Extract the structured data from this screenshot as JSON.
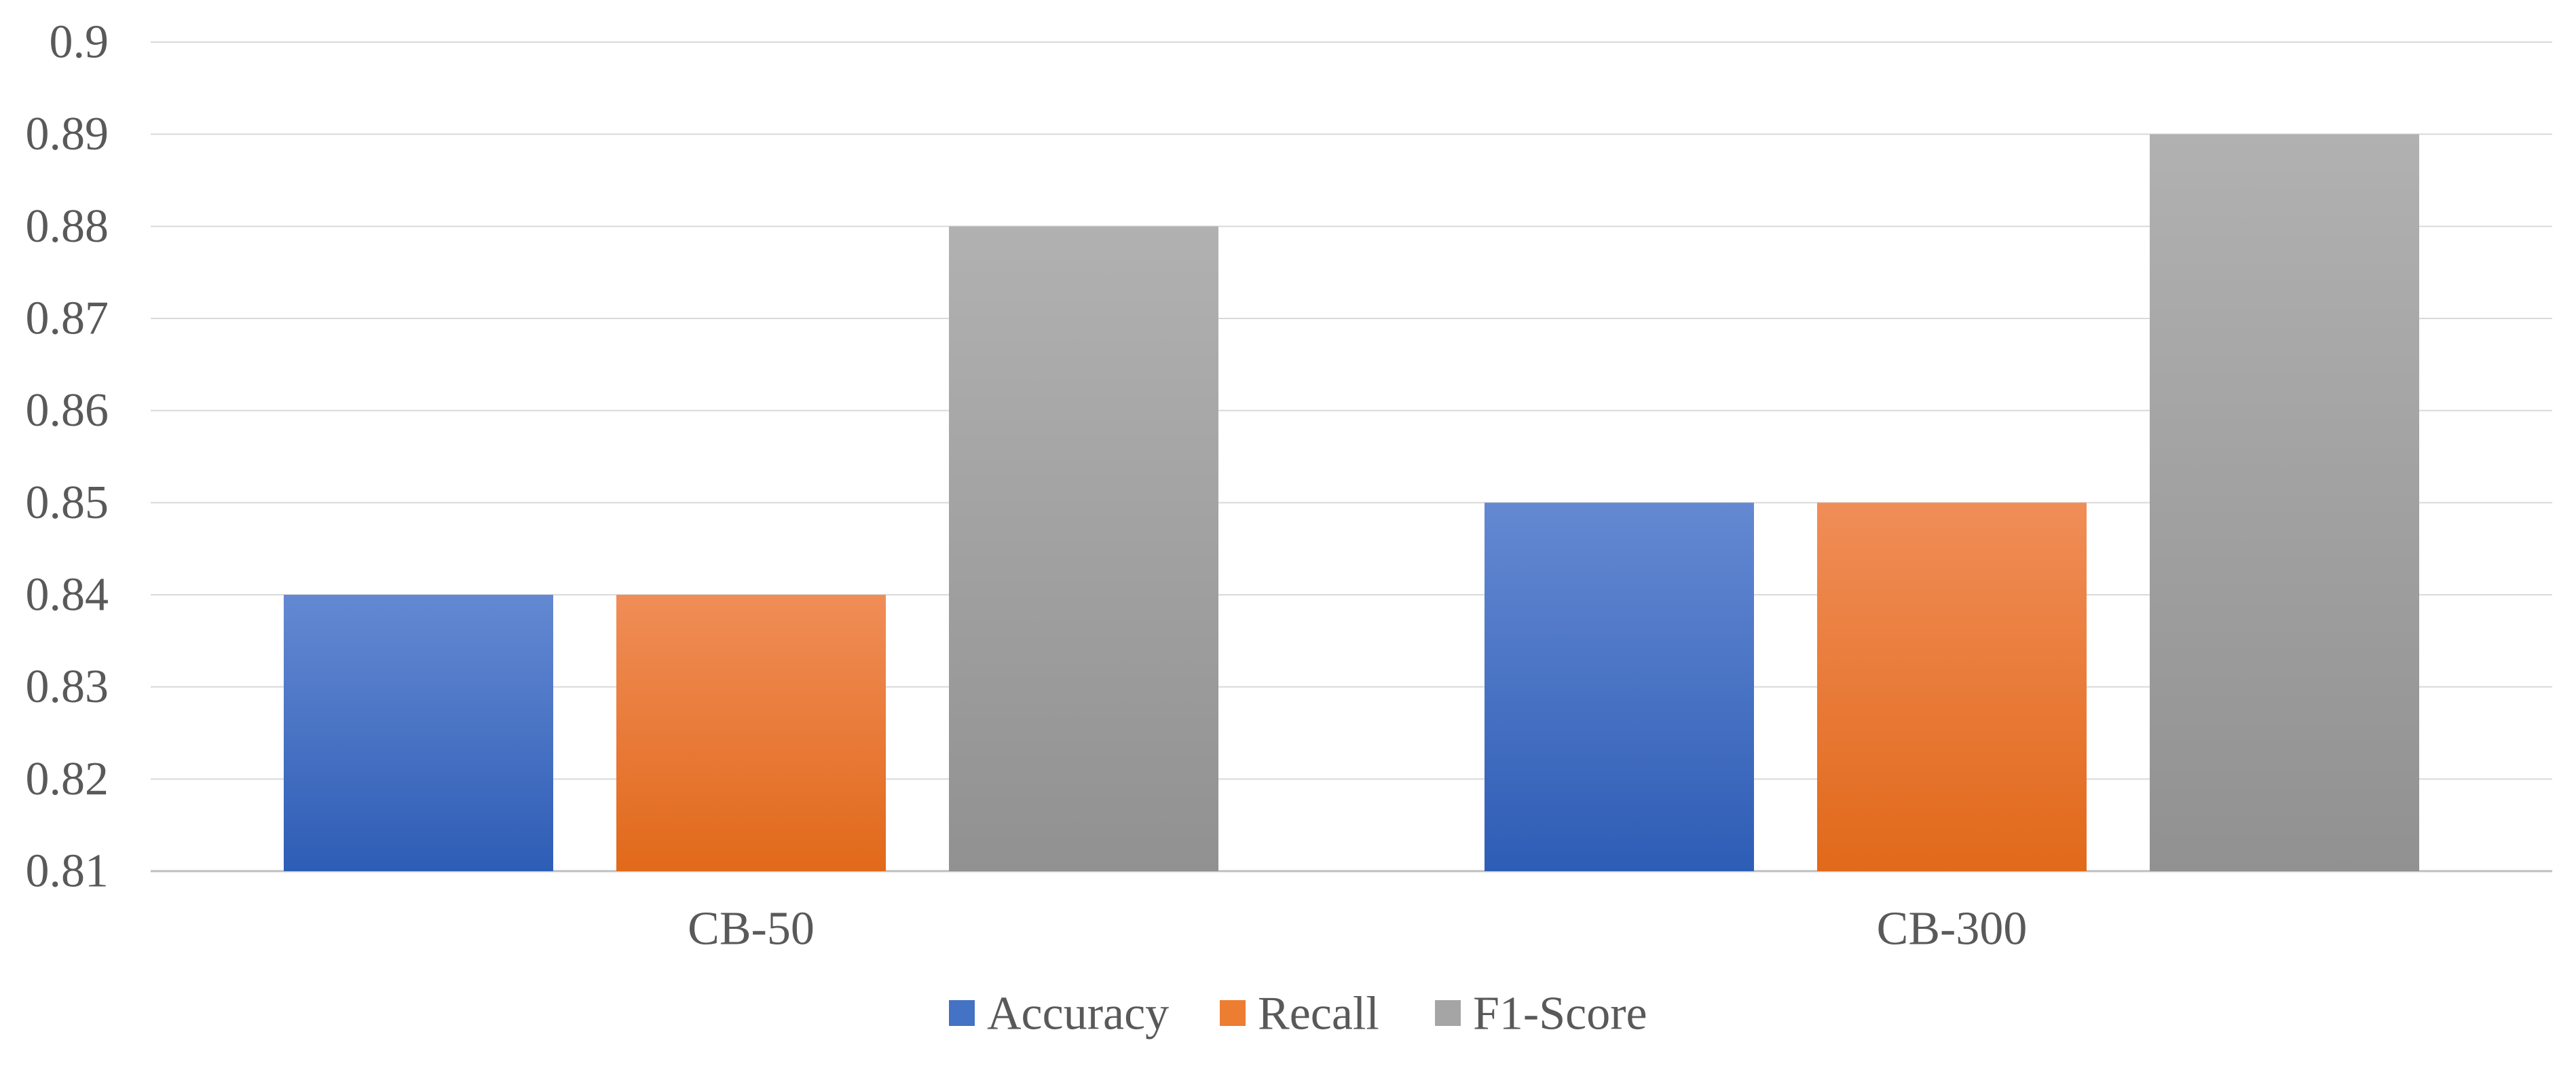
{
  "chart_data": {
    "type": "bar",
    "categories": [
      "CB-50",
      "CB-300"
    ],
    "series": [
      {
        "name": "Accuracy",
        "values": [
          0.84,
          0.85
        ],
        "color": "#4472C4"
      },
      {
        "name": "Recall",
        "values": [
          0.84,
          0.85
        ],
        "color": "#ED7D31"
      },
      {
        "name": "F1-Score",
        "values": [
          0.88,
          0.89
        ],
        "color": "#A5A5A5"
      }
    ],
    "ylim": [
      0.81,
      0.9
    ],
    "yticks": [
      "0.81",
      "0.82",
      "0.83",
      "0.84",
      "0.85",
      "0.86",
      "0.87",
      "0.88",
      "0.89",
      "0.9"
    ],
    "grid": true,
    "legend_position": "bottom"
  }
}
